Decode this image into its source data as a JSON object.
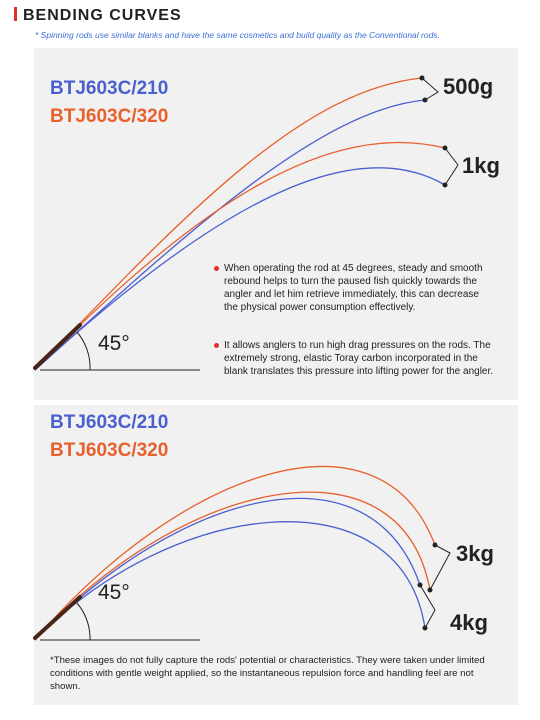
{
  "header": {
    "title": "BENDING CURVES",
    "note": "* Spinning rods use similar blanks and have the same cosmetics and build quality as the Conventional rods."
  },
  "panels": [
    {
      "series_labels": [
        "BTJ603C/210",
        "BTJ603C/320"
      ],
      "loads": [
        "500g",
        "1kg"
      ],
      "angle": "45°",
      "bullets": [
        "When operating the rod at 45 degrees, steady and smooth rebound helps to turn the paused fish quickly towards the angler and let him retrieve immediately, this can decrease the physical power consumption effectively.",
        "It allows anglers to run high drag pressures on the rods. The extremely strong, elastic Toray carbon incorporated in the blank translates this pressure into lifting power for the angler."
      ]
    },
    {
      "series_labels": [
        "BTJ603C/210",
        "BTJ603C/320"
      ],
      "loads": [
        "3kg",
        "4kg"
      ],
      "angle": "45°"
    }
  ],
  "footnote": "*These images do not fully capture the rods' potential or characteristics. They were taken under limited conditions with gentle weight applied, so the instantaneous repulsion force and handling feel are not shown."
}
